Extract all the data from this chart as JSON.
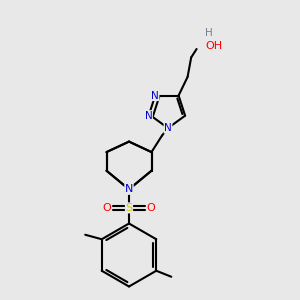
{
  "bg_color": "#e8e8e8",
  "atom_colors": {
    "C": "#000000",
    "N": "#0000cd",
    "O": "#ff0000",
    "S": "#cccc00",
    "H": "#708090"
  },
  "bond_color": "#000000",
  "bond_width": 1.5,
  "figsize": [
    3.0,
    3.0
  ],
  "dpi": 100
}
